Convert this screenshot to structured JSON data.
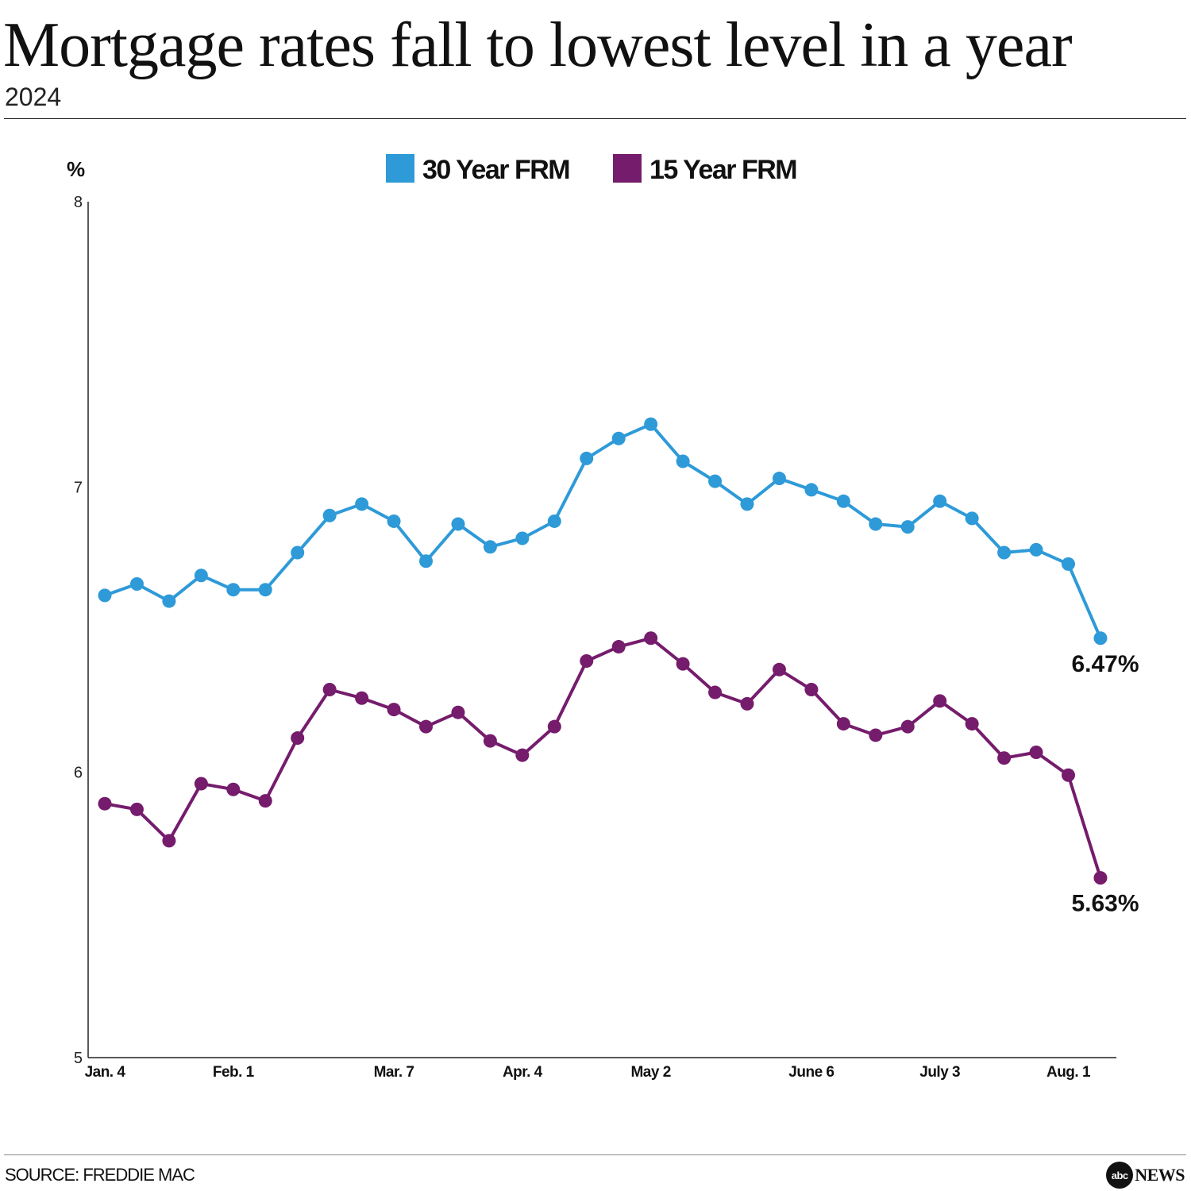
{
  "header": {
    "title": "Mortgage rates fall to lowest level in a year",
    "subtitle": "2024"
  },
  "footer": {
    "source": "SOURCE: FREDDIE MAC",
    "brand_mark": "abc",
    "brand_word": "NEWS"
  },
  "colors": {
    "series_30": "#2E9AD8",
    "series_15": "#751C6C",
    "axis": "#222222",
    "text": "#111111"
  },
  "chart_data": {
    "type": "line",
    "title": "Mortgage rates fall to lowest level in a year",
    "subtitle": "2024",
    "ylabel": "%",
    "xlabel": "",
    "ylim": [
      5,
      8
    ],
    "yticks": [
      5,
      6,
      7,
      8
    ],
    "grid": false,
    "legend": "top-center",
    "x_tick_labels": [
      {
        "index": 0,
        "label": "Jan. 4"
      },
      {
        "index": 4,
        "label": "Feb. 1"
      },
      {
        "index": 9,
        "label": "Mar. 7"
      },
      {
        "index": 13,
        "label": "Apr. 4"
      },
      {
        "index": 17,
        "label": "May 2"
      },
      {
        "index": 22,
        "label": "June 6"
      },
      {
        "index": 26,
        "label": "July 3"
      },
      {
        "index": 30,
        "label": "Aug. 1"
      }
    ],
    "series": [
      {
        "name": "30 Year FRM",
        "color": "#2E9AD8",
        "end_label": "6.47%",
        "values": [
          6.62,
          6.66,
          6.6,
          6.69,
          6.64,
          6.64,
          6.77,
          6.9,
          6.94,
          6.88,
          6.74,
          6.87,
          6.79,
          6.82,
          6.88,
          7.1,
          7.17,
          7.22,
          7.09,
          7.02,
          6.94,
          7.03,
          6.99,
          6.95,
          6.87,
          6.86,
          6.95,
          6.89,
          6.77,
          6.78,
          6.73,
          6.47
        ]
      },
      {
        "name": "15 Year FRM",
        "color": "#751C6C",
        "end_label": "5.63%",
        "values": [
          5.89,
          5.87,
          5.76,
          5.96,
          5.94,
          5.9,
          6.12,
          6.29,
          6.26,
          6.22,
          6.16,
          6.21,
          6.11,
          6.06,
          6.16,
          6.39,
          6.44,
          6.47,
          6.38,
          6.28,
          6.24,
          6.36,
          6.29,
          6.17,
          6.13,
          6.16,
          6.25,
          6.17,
          6.05,
          6.07,
          5.99,
          5.63
        ]
      }
    ]
  }
}
